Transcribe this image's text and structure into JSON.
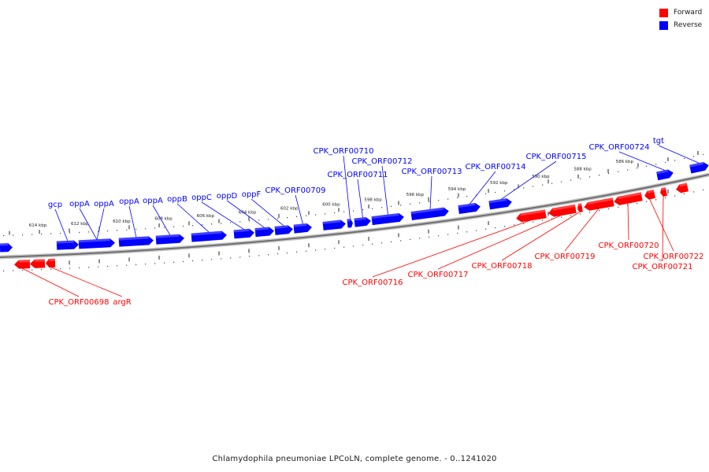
{
  "legend": {
    "forward_label": "Forward",
    "reverse_label": "Reverse",
    "forward_color": "#ff0000",
    "reverse_color": "#0000ff"
  },
  "caption": "Chlamydophila pneumoniae LPCoLN, complete genome. - 0..1241020",
  "scale": {
    "unit": "kbp",
    "ticks": [
      614,
      612,
      610,
      608,
      606,
      604,
      602,
      600,
      598,
      596,
      594,
      592,
      590,
      588,
      586
    ]
  },
  "genes": {
    "reverse": [
      "gcp",
      "oppA",
      "oppA",
      "oppA",
      "oppA",
      "oppB",
      "oppC",
      "oppD",
      "oppF",
      "CPK_ORF00709",
      "CPK_ORF00710",
      "CPK_ORF00711",
      "CPK_ORF00712",
      "CPK_ORF00713",
      "CPK_ORF00714",
      "CPK_ORF00715",
      "CPK_ORF00724",
      "tgt"
    ],
    "forward": [
      "CPK_ORF00698",
      "argR",
      "CPK_ORF00716",
      "CPK_ORF00717",
      "CPK_ORF00718",
      "CPK_ORF00719",
      "CPK_ORF00720",
      "CPK_ORF00722",
      "CPK_ORF00721"
    ]
  }
}
